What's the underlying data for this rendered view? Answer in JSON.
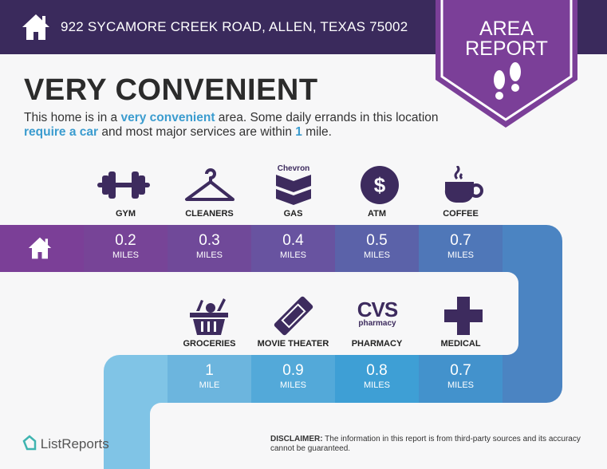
{
  "header": {
    "address": "922 SYCAMORE CREEK ROAD, ALLEN, TEXAS 75002",
    "icon": "home-icon"
  },
  "banner": {
    "line1": "AREA",
    "line2": "REPORT",
    "icon": "footprints-icon",
    "color": "#7b3f98"
  },
  "headline": "VERY CONVENIENT",
  "description": {
    "p1": "This home is in a ",
    "h1": "very convenient",
    "p2": " area. Some daily errands in this location ",
    "h2": "require a car",
    "p3": " and most major services are within ",
    "h3": "1",
    "p4": " mile."
  },
  "row1": [
    {
      "label": "GYM",
      "value": "0.2",
      "unit": "MILES",
      "icon": "dumbbell-icon"
    },
    {
      "label": "CLEANERS",
      "value": "0.3",
      "unit": "MILES",
      "icon": "hanger-icon"
    },
    {
      "label": "GAS",
      "value": "0.4",
      "unit": "MILES",
      "icon": "chevron-logo-icon",
      "logo_text": "Chevron"
    },
    {
      "label": "ATM",
      "value": "0.5",
      "unit": "MILES",
      "icon": "dollar-icon"
    },
    {
      "label": "COFFEE",
      "value": "0.7",
      "unit": "MILES",
      "icon": "coffee-cup-icon"
    }
  ],
  "row2": [
    {
      "label": "GROCERIES",
      "value": "1",
      "unit": "MILE",
      "icon": "basket-icon"
    },
    {
      "label": "MOVIE THEATER",
      "value": "0.9",
      "unit": "MILES",
      "icon": "ticket-icon"
    },
    {
      "label": "PHARMACY",
      "value": "0.8",
      "unit": "MILES",
      "icon": "cvs-logo-icon",
      "logo_text": "CVS",
      "logo_sub": "pharmacy"
    },
    {
      "label": "MEDICAL",
      "value": "0.7",
      "unit": "MILES",
      "icon": "medical-cross-icon"
    }
  ],
  "footer": {
    "brand": "ListReports",
    "disclaimer_label": "DISCLAIMER:",
    "disclaimer": " The information in this report is from third-party sources and its accuracy cannot be guaranteed."
  },
  "colors": {
    "header": "#3a2a5c",
    "icon": "#3d2b5e",
    "accent": "#3b9ccf"
  }
}
